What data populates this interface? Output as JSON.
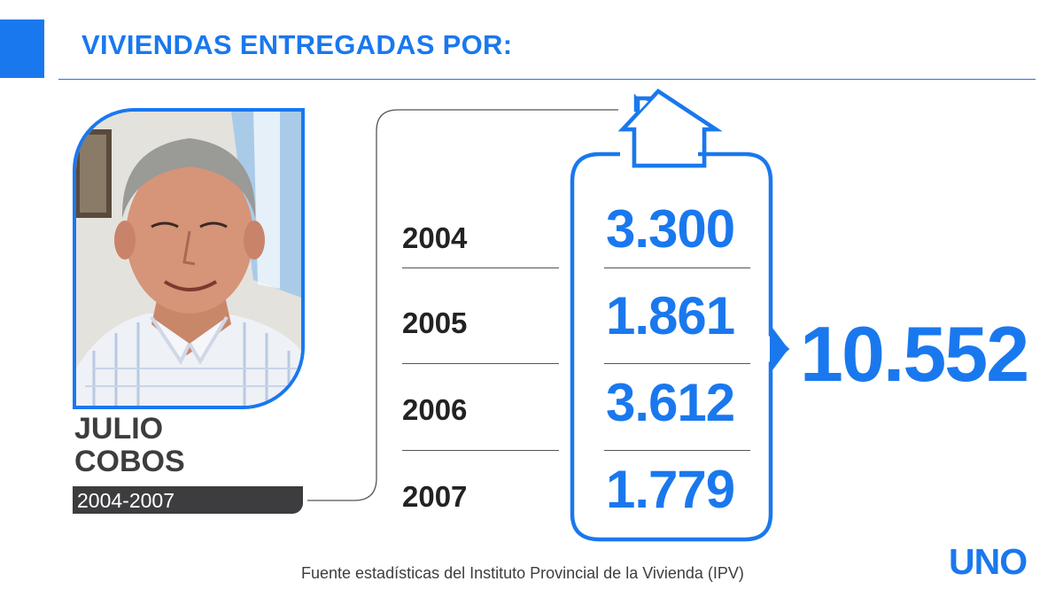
{
  "title": "VIVIENDAS ENTREGADAS POR:",
  "person": {
    "first_name": "JULIO",
    "last_name": "COBOS",
    "period": "2004-2007"
  },
  "colors": {
    "accent": "#1a78ee",
    "dark": "#3d3d3f"
  },
  "chart_data": {
    "type": "table",
    "categories": [
      "2004",
      "2005",
      "2006",
      "2007"
    ],
    "values": [
      3300,
      1861,
      3612,
      1779
    ],
    "value_labels": [
      "3.300",
      "1.861",
      "3.612",
      "1.779"
    ],
    "total": 10552,
    "total_label": "10.552"
  },
  "source": "Fuente estadísticas del Instituto Provincial de la Vivienda (IPV)",
  "logo": "UNO",
  "icons": [
    "house-icon",
    "arrow-right-icon"
  ]
}
